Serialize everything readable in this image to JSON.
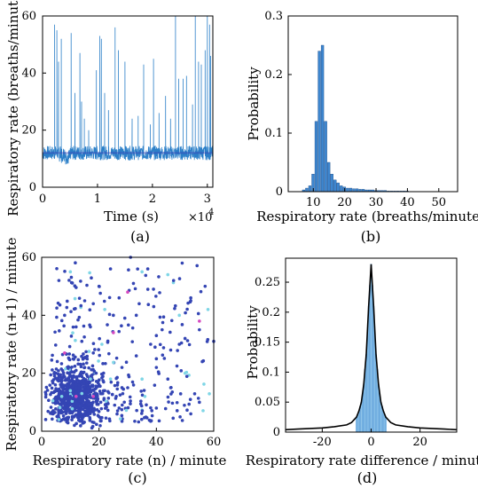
{
  "panels": {
    "a": {
      "label": "(a)",
      "xlabel": "Time (s)",
      "xlabel_exponent": "×10",
      "xlabel_exponent_power": "4",
      "ylabel": "Respiratory rate (breaths/minute)",
      "xticks": [
        "0",
        "1",
        "2",
        "3"
      ],
      "yticks": [
        "0",
        "20",
        "40",
        "60"
      ]
    },
    "b": {
      "label": "(b)",
      "xlabel": "Respiratory rate (breaths/minute)",
      "ylabel": "Probability",
      "xticks": [
        "10",
        "20",
        "30",
        "40",
        "50"
      ],
      "yticks": [
        "0",
        "0.1",
        "0.2",
        "0.3"
      ]
    },
    "c": {
      "label": "(c)",
      "xlabel": "Respiratory rate (n) / minute",
      "ylabel": "Respiratory rate (n+1) / minute",
      "xticks": [
        "0",
        "20",
        "40",
        "60"
      ],
      "yticks": [
        "0",
        "20",
        "40",
        "60"
      ]
    },
    "d": {
      "label": "(d)",
      "xlabel": "Respiratory rate difference / minute",
      "ylabel": "Probability",
      "xticks": [
        "-20",
        "0",
        "20"
      ],
      "yticks": [
        "0",
        "0.05",
        "0.1",
        "0.15",
        "0.2",
        "0.25"
      ]
    }
  },
  "colors": {
    "line": "#2b7fc8",
    "line_dark": "#3a45b5",
    "bar": "#3d86cf",
    "dot": "#3445b4",
    "dot_alt": "#7fd6e6",
    "dot_pink": "#d64ac0",
    "curve": "#000000"
  },
  "chart_data": [
    {
      "type": "line",
      "panel": "a",
      "xlabel": "Time (s)",
      "ylabel": "Respiratory rate (breaths/minute)",
      "xlim": [
        0,
        31000
      ],
      "ylim": [
        0,
        60
      ],
      "baseline": 12,
      "spikes": [
        {
          "x": 2200,
          "y": 57
        },
        {
          "x": 2600,
          "y": 55
        },
        {
          "x": 2900,
          "y": 44
        },
        {
          "x": 3400,
          "y": 52
        },
        {
          "x": 5200,
          "y": 54
        },
        {
          "x": 5900,
          "y": 33
        },
        {
          "x": 6800,
          "y": 47
        },
        {
          "x": 7100,
          "y": 30
        },
        {
          "x": 7600,
          "y": 24
        },
        {
          "x": 8400,
          "y": 20
        },
        {
          "x": 9800,
          "y": 41
        },
        {
          "x": 10400,
          "y": 53
        },
        {
          "x": 10700,
          "y": 52
        },
        {
          "x": 11300,
          "y": 33
        },
        {
          "x": 12000,
          "y": 27
        },
        {
          "x": 13200,
          "y": 56
        },
        {
          "x": 13800,
          "y": 48
        },
        {
          "x": 15000,
          "y": 44
        },
        {
          "x": 16300,
          "y": 24
        },
        {
          "x": 17400,
          "y": 25
        },
        {
          "x": 18400,
          "y": 43
        },
        {
          "x": 19600,
          "y": 22
        },
        {
          "x": 20200,
          "y": 45
        },
        {
          "x": 21200,
          "y": 26
        },
        {
          "x": 22400,
          "y": 32
        },
        {
          "x": 23300,
          "y": 24
        },
        {
          "x": 24200,
          "y": 60
        },
        {
          "x": 24800,
          "y": 38
        },
        {
          "x": 25600,
          "y": 38
        },
        {
          "x": 26200,
          "y": 39
        },
        {
          "x": 27300,
          "y": 29
        },
        {
          "x": 27800,
          "y": 60
        },
        {
          "x": 28400,
          "y": 44
        },
        {
          "x": 28900,
          "y": 43
        },
        {
          "x": 29600,
          "y": 48
        },
        {
          "x": 30000,
          "y": 60
        },
        {
          "x": 30400,
          "y": 57
        },
        {
          "x": 30600,
          "y": 46
        }
      ]
    },
    {
      "type": "bar",
      "panel": "b",
      "xlabel": "Respiratory rate (breaths/minute)",
      "ylabel": "Probability",
      "xlim": [
        2,
        56
      ],
      "ylim": [
        0,
        0.3
      ],
      "bin_width": 1,
      "bins": [
        {
          "x": 7,
          "y": 0.003
        },
        {
          "x": 8,
          "y": 0.006
        },
        {
          "x": 9,
          "y": 0.01
        },
        {
          "x": 10,
          "y": 0.03
        },
        {
          "x": 11,
          "y": 0.12
        },
        {
          "x": 12,
          "y": 0.24
        },
        {
          "x": 13,
          "y": 0.25
        },
        {
          "x": 14,
          "y": 0.12
        },
        {
          "x": 15,
          "y": 0.05
        },
        {
          "x": 16,
          "y": 0.03
        },
        {
          "x": 17,
          "y": 0.02
        },
        {
          "x": 18,
          "y": 0.015
        },
        {
          "x": 19,
          "y": 0.01
        },
        {
          "x": 20,
          "y": 0.008
        },
        {
          "x": 21,
          "y": 0.006
        },
        {
          "x": 22,
          "y": 0.006
        },
        {
          "x": 23,
          "y": 0.005
        },
        {
          "x": 24,
          "y": 0.005
        },
        {
          "x": 25,
          "y": 0.004
        },
        {
          "x": 26,
          "y": 0.004
        },
        {
          "x": 27,
          "y": 0.003
        },
        {
          "x": 28,
          "y": 0.003
        },
        {
          "x": 29,
          "y": 0.003
        },
        {
          "x": 30,
          "y": 0.002
        },
        {
          "x": 31,
          "y": 0.002
        },
        {
          "x": 32,
          "y": 0.002
        },
        {
          "x": 33,
          "y": 0.002
        },
        {
          "x": 34,
          "y": 0.001
        },
        {
          "x": 35,
          "y": 0.001
        },
        {
          "x": 36,
          "y": 0.001
        },
        {
          "x": 37,
          "y": 0.001
        },
        {
          "x": 38,
          "y": 0.001
        },
        {
          "x": 39,
          "y": 0.001
        },
        {
          "x": 40,
          "y": 0.001
        }
      ]
    },
    {
      "type": "scatter",
      "panel": "c",
      "xlabel": "Respiratory rate (n) / minute",
      "ylabel": "Respiratory rate (n+1) / minute",
      "xlim": [
        0,
        60
      ],
      "ylim": [
        0,
        60
      ],
      "cluster_center": [
        12,
        12
      ],
      "points": [
        [
          12,
          12
        ],
        [
          11,
          13
        ],
        [
          13,
          11
        ],
        [
          10,
          12
        ],
        [
          12,
          10
        ],
        [
          14,
          13
        ],
        [
          9,
          11
        ],
        [
          13,
          15
        ],
        [
          11,
          9
        ],
        [
          15,
          12
        ],
        [
          10,
          14
        ],
        [
          12,
          16
        ],
        [
          8,
          10
        ],
        [
          16,
          14
        ],
        [
          14,
          9
        ],
        [
          17,
          18
        ],
        [
          9,
          15
        ],
        [
          18,
          12
        ],
        [
          13,
          19
        ],
        [
          20,
          16
        ],
        [
          7,
          12
        ],
        [
          12,
          21
        ],
        [
          22,
          14
        ],
        [
          15,
          22
        ],
        [
          19,
          20
        ],
        [
          24,
          18
        ],
        [
          11,
          25
        ],
        [
          26,
          12
        ],
        [
          18,
          27
        ],
        [
          28,
          22
        ],
        [
          21,
          30
        ],
        [
          30,
          15
        ],
        [
          14,
          31
        ],
        [
          33,
          26
        ],
        [
          25,
          34
        ],
        [
          35,
          18
        ],
        [
          17,
          36
        ],
        [
          38,
          30
        ],
        [
          29,
          39
        ],
        [
          40,
          22
        ],
        [
          22,
          42
        ],
        [
          42,
          35
        ],
        [
          34,
          44
        ],
        [
          45,
          28
        ],
        [
          27,
          46
        ],
        [
          48,
          40
        ],
        [
          39,
          49
        ],
        [
          50,
          32
        ],
        [
          32,
          51
        ],
        [
          52,
          45
        ],
        [
          44,
          54
        ],
        [
          55,
          38
        ],
        [
          37,
          56
        ],
        [
          57,
          50
        ],
        [
          49,
          58
        ],
        [
          58,
          42
        ],
        [
          8,
          40
        ],
        [
          40,
          8
        ],
        [
          6,
          52
        ],
        [
          52,
          6
        ],
        [
          10,
          55
        ],
        [
          55,
          10
        ],
        [
          15,
          45
        ],
        [
          45,
          15
        ],
        [
          20,
          50
        ],
        [
          50,
          20
        ],
        [
          25,
          40
        ],
        [
          40,
          25
        ],
        [
          30,
          48
        ],
        [
          48,
          30
        ],
        [
          35,
          55
        ],
        [
          55,
          35
        ],
        [
          60,
          31
        ],
        [
          31,
          60
        ],
        [
          4,
          6
        ],
        [
          6,
          4
        ],
        [
          5,
          20
        ],
        [
          20,
          5
        ],
        [
          24,
          56
        ],
        [
          56,
          24
        ],
        [
          36,
          12
        ],
        [
          12,
          36
        ],
        [
          44,
          18
        ],
        [
          18,
          44
        ],
        [
          27,
          8
        ],
        [
          8,
          27
        ],
        [
          33,
          40
        ],
        [
          40,
          33
        ],
        [
          46,
          52
        ],
        [
          52,
          46
        ]
      ]
    },
    {
      "type": "area",
      "panel": "d",
      "xlabel": "Respiratory rate difference / minute",
      "ylabel": "Probability",
      "xlim": [
        -35,
        35
      ],
      "ylim": [
        0,
        0.29
      ],
      "peak": {
        "x": 0,
        "y": 0.28
      },
      "curve": [
        [
          -35,
          0.004
        ],
        [
          -30,
          0.005
        ],
        [
          -25,
          0.006
        ],
        [
          -20,
          0.007
        ],
        [
          -15,
          0.009
        ],
        [
          -10,
          0.012
        ],
        [
          -8,
          0.016
        ],
        [
          -6,
          0.025
        ],
        [
          -5,
          0.035
        ],
        [
          -4,
          0.05
        ],
        [
          -3,
          0.08
        ],
        [
          -2,
          0.13
        ],
        [
          -1,
          0.21
        ],
        [
          0,
          0.28
        ],
        [
          1,
          0.21
        ],
        [
          2,
          0.13
        ],
        [
          3,
          0.08
        ],
        [
          4,
          0.05
        ],
        [
          5,
          0.035
        ],
        [
          6,
          0.025
        ],
        [
          8,
          0.016
        ],
        [
          10,
          0.012
        ],
        [
          15,
          0.009
        ],
        [
          20,
          0.007
        ],
        [
          25,
          0.006
        ],
        [
          30,
          0.005
        ],
        [
          35,
          0.004
        ]
      ]
    }
  ]
}
